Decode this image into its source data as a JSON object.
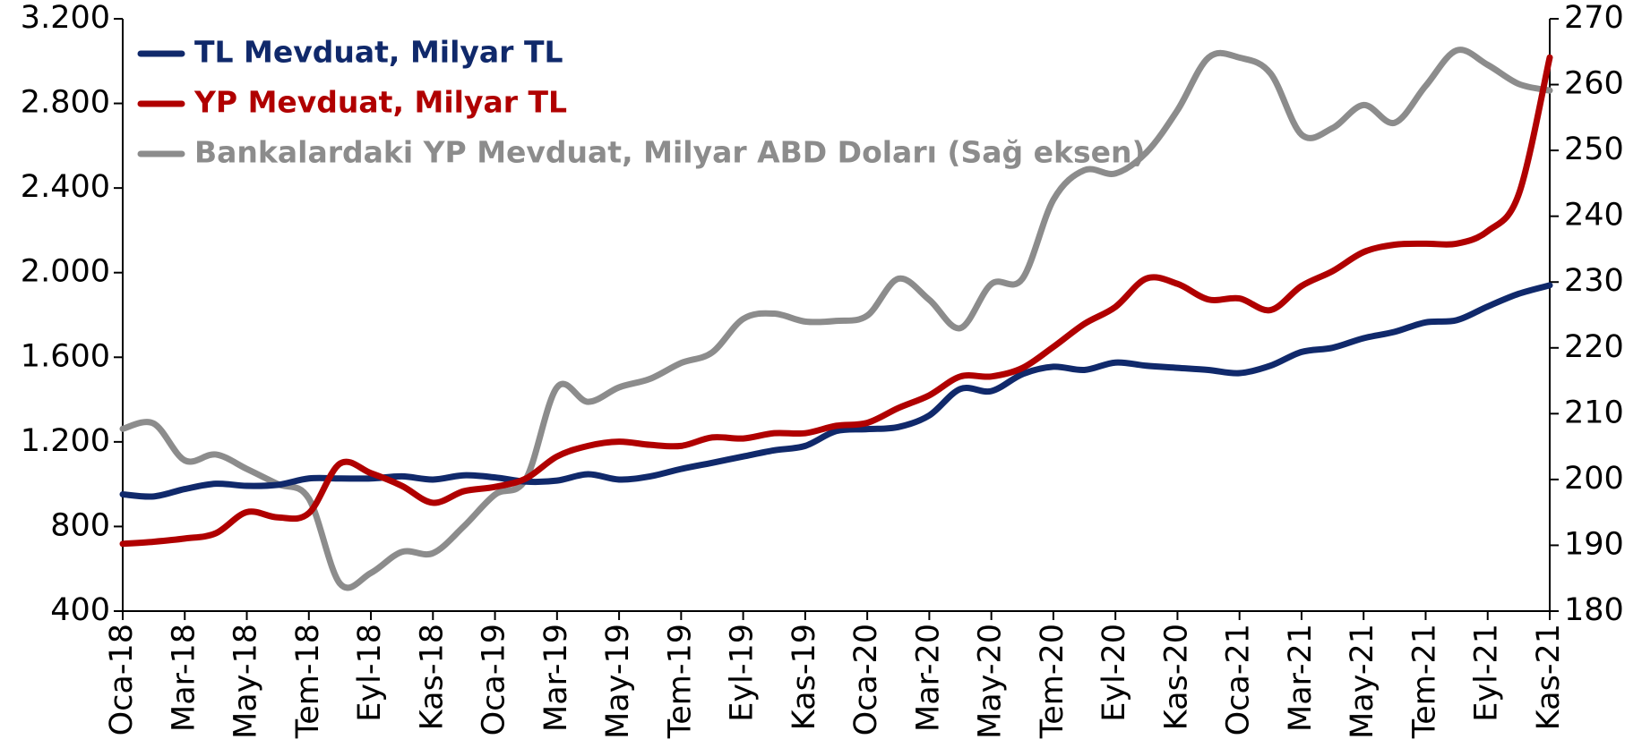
{
  "chart_data": {
    "type": "line",
    "categories": [
      "Oca-18",
      null,
      "Mar-18",
      null,
      "May-18",
      null,
      "Tem-18",
      null,
      "Eyl-18",
      null,
      "Kas-18",
      null,
      "Oca-19",
      null,
      "Mar-19",
      null,
      "May-19",
      null,
      "Tem-19",
      null,
      "Eyl-19",
      null,
      "Kas-19",
      null,
      "Oca-20",
      null,
      "Mar-20",
      null,
      "May-20",
      null,
      "Tem-20",
      null,
      "Eyl-20",
      null,
      "Kas-20",
      null,
      "Oca-21",
      null,
      "Mar-21",
      null,
      "May-21",
      null,
      "Tem-21",
      null,
      "Eyl-21",
      null,
      "Kas-21"
    ],
    "series": [
      {
        "name": "TL Mevduat, Milyar TL",
        "color": "#10296b",
        "values": [
          952,
          942,
          977,
          1002,
          992,
          997,
          1027,
          1027,
          1027,
          1037,
          1022,
          1042,
          1032,
          1012,
          1017,
          1047,
          1022,
          1037,
          1072,
          1101,
          1131,
          1160,
          1181,
          1251,
          1260,
          1270,
          1325,
          1450,
          1440,
          1520,
          1555,
          1540,
          1575,
          1560,
          1550,
          1540,
          1525,
          1560,
          1625,
          1645,
          1690,
          1720,
          1765,
          1775,
          1840,
          1900,
          1940
        ]
      },
      {
        "name": "YP Mevduat, Milyar TL",
        "color": "#b00000",
        "values": [
          718,
          728,
          743,
          768,
          868,
          843,
          863,
          1097,
          1052,
          992,
          912,
          967,
          987,
          1027,
          1131,
          1181,
          1201,
          1186,
          1181,
          1221,
          1216,
          1241,
          1241,
          1276,
          1290,
          1360,
          1420,
          1509,
          1509,
          1549,
          1649,
          1758,
          1838,
          1972,
          1947,
          1873,
          1878,
          1823,
          1937,
          2007,
          2097,
          2132,
          2137,
          2137,
          2196,
          2370,
          3017
        ]
      },
      {
        "name": "Bankalardaki YP Mevduat, Milyar ABD Doları (Sağ eksen)",
        "color": "#8c8c8c",
        "axis": "y2",
        "values": [
          207.7,
          208.5,
          202.9,
          203.8,
          201.6,
          199.3,
          197.1,
          184.2,
          185.8,
          189.0,
          188.8,
          192.9,
          197.7,
          200.1,
          214.0,
          211.8,
          214.0,
          215.3,
          217.7,
          219.3,
          224.4,
          225.2,
          224.0,
          224.1,
          224.9,
          230.5,
          227.3,
          223.0,
          229.7,
          230.5,
          242.5,
          247.0,
          246.5,
          249.7,
          256.1,
          264.1,
          264.1,
          261.7,
          252.4,
          253.4,
          256.9,
          254.2,
          259.8,
          265.2,
          263.0,
          260.1,
          259.1
        ]
      }
    ],
    "ylim": [
      400,
      3200
    ],
    "yticks": [
      400,
      800,
      {
        "value": 1200,
        "label": "1.200"
      },
      {
        "value": 1600,
        "label": "1.600"
      },
      {
        "value": 2000,
        "label": "2.000"
      },
      {
        "value": 2400,
        "label": "2.400"
      },
      {
        "value": 2800,
        "label": "2.800"
      },
      {
        "value": 3200,
        "label": "3.200"
      }
    ],
    "y2lim": [
      180,
      270
    ],
    "y2ticks": [
      180,
      190,
      200,
      210,
      220,
      230,
      240,
      250,
      260,
      270
    ],
    "legend": "upper left"
  }
}
